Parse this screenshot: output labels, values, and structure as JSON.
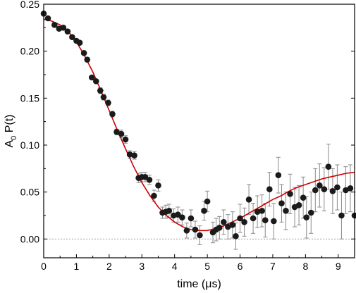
{
  "chart_data": {
    "type": "scatter",
    "title": "",
    "xlabel": "time (μs)",
    "ylabel": "A₀ P(t)",
    "ylabel_main": "A",
    "ylabel_sub": "0",
    "ylabel_rest": " P(t)",
    "xlim": [
      0,
      9.5
    ],
    "ylim": [
      -0.02,
      0.25
    ],
    "xticks": [
      0,
      1,
      2,
      3,
      4,
      5,
      6,
      7,
      8,
      9
    ],
    "yticks": [
      0.0,
      0.05,
      0.1,
      0.15,
      0.2,
      0.25
    ],
    "ytick_labels": [
      "0.00",
      "0.05",
      "0.10",
      "0.15",
      "0.20",
      "0.25"
    ],
    "grid": false,
    "legend": "none",
    "reference_line": {
      "y": 0,
      "style": "dotted",
      "color": "#9a9a9a"
    },
    "colors": {
      "points": "#1a1a1a",
      "fit": "#cc0000",
      "errorbars": "#8a8a8a"
    },
    "series": [
      {
        "kind": "points",
        "x": [
          0.0,
          0.13,
          0.33,
          0.47,
          0.6,
          0.73,
          0.87,
          1.0,
          1.1,
          1.23,
          1.33,
          1.47,
          1.6,
          1.73,
          1.83,
          1.97,
          2.1,
          2.23,
          2.37,
          2.5,
          2.63,
          2.77,
          2.9,
          3.0,
          3.1,
          3.23,
          3.37,
          3.5,
          3.63,
          3.73,
          3.83,
          3.97,
          4.1,
          4.23,
          4.37,
          4.5,
          4.63,
          4.77,
          4.9,
          5.0,
          5.17,
          5.27,
          5.37,
          5.5,
          5.63,
          5.77,
          5.87,
          6.0,
          6.13,
          6.27,
          6.4,
          6.53,
          6.67,
          6.77,
          6.9,
          7.03,
          7.17,
          7.27,
          7.4,
          7.53,
          7.67,
          7.8,
          7.93,
          8.03,
          8.17,
          8.3,
          8.43,
          8.57,
          8.7,
          8.83,
          8.97,
          9.1,
          9.23,
          9.37,
          9.5
        ],
        "y": [
          0.24,
          0.235,
          0.228,
          0.224,
          0.225,
          0.221,
          0.215,
          0.211,
          0.209,
          0.198,
          0.191,
          0.172,
          0.168,
          0.158,
          0.151,
          0.145,
          0.133,
          0.114,
          0.112,
          0.106,
          0.09,
          0.089,
          0.065,
          0.066,
          0.066,
          0.063,
          0.046,
          0.057,
          0.028,
          0.029,
          0.03,
          0.025,
          0.026,
          0.023,
          0.009,
          0.022,
          0.01,
          0.004,
          0.03,
          0.04,
          0.007,
          0.01,
          0.012,
          0.018,
          0.013,
          0.015,
          0.003,
          0.022,
          0.018,
          0.042,
          0.022,
          0.029,
          0.03,
          0.02,
          0.053,
          0.019,
          0.068,
          0.038,
          0.03,
          0.048,
          0.034,
          0.036,
          0.044,
          0.023,
          0.028,
          0.052,
          0.057,
          0.053,
          0.077,
          0.051,
          0.055,
          0.025,
          0.052,
          0.054,
          0.025
        ],
        "err": [
          0.002,
          0.002,
          0.002,
          0.002,
          0.002,
          0.002,
          0.002,
          0.002,
          0.002,
          0.002,
          0.002,
          0.002,
          0.002,
          0.003,
          0.003,
          0.003,
          0.003,
          0.003,
          0.004,
          0.004,
          0.004,
          0.004,
          0.005,
          0.005,
          0.005,
          0.005,
          0.006,
          0.006,
          0.006,
          0.007,
          0.007,
          0.007,
          0.008,
          0.008,
          0.008,
          0.009,
          0.009,
          0.01,
          0.01,
          0.011,
          0.011,
          0.012,
          0.012,
          0.013,
          0.013,
          0.014,
          0.014,
          0.015,
          0.015,
          0.016,
          0.016,
          0.017,
          0.017,
          0.018,
          0.018,
          0.019,
          0.019,
          0.02,
          0.02,
          0.021,
          0.021,
          0.021,
          0.022,
          0.022,
          0.022,
          0.023,
          0.023,
          0.023,
          0.024,
          0.024,
          0.024,
          0.025,
          0.025,
          0.025,
          0.025
        ]
      },
      {
        "kind": "line",
        "x": [
          0.0,
          0.25,
          0.5,
          0.75,
          1.0,
          1.25,
          1.5,
          1.75,
          2.0,
          2.25,
          2.5,
          2.75,
          3.0,
          3.25,
          3.5,
          3.75,
          4.0,
          4.25,
          4.5,
          4.75,
          5.0,
          5.25,
          5.5,
          5.75,
          6.0,
          6.25,
          6.5,
          6.75,
          7.0,
          7.25,
          7.5,
          7.75,
          8.0,
          8.25,
          8.5,
          8.75,
          9.0,
          9.25,
          9.5
        ],
        "y": [
          0.234,
          0.232,
          0.228,
          0.221,
          0.21,
          0.195,
          0.178,
          0.158,
          0.137,
          0.116,
          0.096,
          0.077,
          0.06,
          0.046,
          0.034,
          0.025,
          0.018,
          0.013,
          0.01,
          0.009,
          0.009,
          0.011,
          0.014,
          0.018,
          0.022,
          0.027,
          0.032,
          0.037,
          0.042,
          0.046,
          0.051,
          0.055,
          0.058,
          0.061,
          0.064,
          0.066,
          0.068,
          0.07,
          0.071
        ]
      }
    ]
  }
}
